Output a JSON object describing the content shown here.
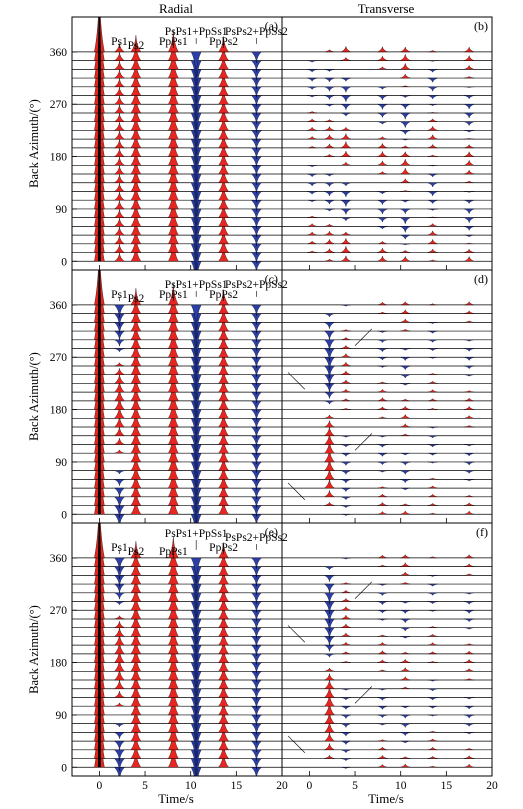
{
  "figure": {
    "column_titles": [
      "Radial",
      "Transverse"
    ],
    "y_axis_label": "Back Azimuth/(°)",
    "x_axis_label": "Time/s"
  },
  "colors": {
    "positive_fill": "#e8261f",
    "negative_fill": "#2c3fa8",
    "direct_fill": "#000000",
    "arrow_orange": "#e07a2a",
    "arrow_green": "#2e9a3e",
    "trace_line": "#000000"
  },
  "chart_data": [
    {
      "type": "receiver-function-gather",
      "panel_label": "(a)",
      "component": "Radial",
      "xlim": [
        -3,
        20
      ],
      "ylim": [
        -15,
        420
      ],
      "x_ticks": [
        0,
        5,
        10,
        15,
        20
      ],
      "y_ticks": [
        0,
        90,
        180,
        270,
        360
      ],
      "back_azimuths": [
        0,
        15,
        30,
        45,
        60,
        75,
        90,
        105,
        120,
        135,
        150,
        165,
        180,
        195,
        210,
        225,
        240,
        255,
        270,
        285,
        300,
        315,
        330,
        345,
        360
      ],
      "phases": [
        {
          "name": "direct P",
          "t": 0,
          "amplitude": 1.0,
          "sign": "positive",
          "varies_with_azimuth": false
        },
        {
          "name": "Ps1",
          "t": 2.2,
          "amplitude": 0.13,
          "sign": "positive",
          "varies_with_azimuth": false
        },
        {
          "name": "Ps2",
          "t": 4.0,
          "amplitude": 0.26,
          "sign": "positive",
          "varies_with_azimuth": false
        },
        {
          "name": "PpPs1",
          "t": 8.1,
          "amplitude": 0.34,
          "sign": "positive",
          "varies_with_azimuth": false
        },
        {
          "name": "PsPs1+PpSs1",
          "t": 10.6,
          "amplitude": 0.38,
          "sign": "negative",
          "varies_with_azimuth": false
        },
        {
          "name": "PpPs2",
          "t": 13.6,
          "amplitude": 0.24,
          "sign": "positive",
          "varies_with_azimuth": false
        },
        {
          "name": "PsPs2+PpSs2",
          "t": 17.2,
          "amplitude": 0.17,
          "sign": "negative",
          "varies_with_azimuth": false
        }
      ],
      "annotations": [
        {
          "text": "Ps1",
          "t": 2.2
        },
        {
          "text": "Ps2",
          "t": 4.0
        },
        {
          "text": "PpPs1",
          "t": 8.1
        },
        {
          "text": "PsPs1+PpSs1",
          "t": 10.6
        },
        {
          "text": "PpPs2",
          "t": 13.6
        },
        {
          "text": "PsPs2+PpSs2",
          "t": 17.2
        }
      ],
      "arrows": []
    },
    {
      "type": "receiver-function-gather",
      "panel_label": "(b)",
      "component": "Transverse",
      "xlim": [
        -3,
        20
      ],
      "ylim": [
        -15,
        420
      ],
      "x_ticks": [
        0,
        5,
        10,
        15,
        20
      ],
      "y_ticks": [
        0,
        90,
        180,
        270,
        360
      ],
      "back_azimuths": [
        0,
        15,
        30,
        45,
        60,
        75,
        90,
        105,
        120,
        135,
        150,
        165,
        180,
        195,
        210,
        225,
        240,
        255,
        270,
        285,
        300,
        315,
        330,
        345,
        360
      ],
      "phases": [
        {
          "name": "T1",
          "t": 0.3,
          "amplitude": 0.05,
          "sign": "positive",
          "varies_with_azimuth": true,
          "pattern": "sin2",
          "phase_deg": 0
        },
        {
          "name": "T2",
          "t": 2.2,
          "amplitude": 0.07,
          "sign": "positive",
          "varies_with_azimuth": true,
          "pattern": "sin2",
          "phase_deg": 30
        },
        {
          "name": "T3",
          "t": 4.0,
          "amplitude": 0.1,
          "sign": "positive",
          "varies_with_azimuth": true,
          "pattern": "sin2",
          "phase_deg": 60
        },
        {
          "name": "T4",
          "t": 8.0,
          "amplitude": 0.08,
          "sign": "positive",
          "varies_with_azimuth": true,
          "pattern": "sin2",
          "phase_deg": 90
        },
        {
          "name": "T5",
          "t": 10.5,
          "amplitude": 0.1,
          "sign": "positive",
          "varies_with_azimuth": true,
          "pattern": "sin2",
          "phase_deg": 130
        },
        {
          "name": "T6",
          "t": 13.5,
          "amplitude": 0.07,
          "sign": "positive",
          "varies_with_azimuth": true,
          "pattern": "sin2",
          "phase_deg": 20
        },
        {
          "name": "T7",
          "t": 17.5,
          "amplitude": 0.08,
          "sign": "positive",
          "varies_with_azimuth": true,
          "pattern": "sin2",
          "phase_deg": 110
        }
      ],
      "annotations": [],
      "arrows": []
    },
    {
      "type": "receiver-function-gather",
      "panel_label": "(c)",
      "component": "Radial",
      "xlim": [
        -3,
        20
      ],
      "ylim": [
        -15,
        420
      ],
      "x_ticks": [
        0,
        5,
        10,
        15,
        20
      ],
      "y_ticks": [
        0,
        90,
        180,
        270,
        360
      ],
      "back_azimuths": [
        0,
        15,
        30,
        45,
        60,
        75,
        90,
        105,
        120,
        135,
        150,
        165,
        180,
        195,
        210,
        225,
        240,
        255,
        270,
        285,
        300,
        315,
        330,
        345,
        360
      ],
      "phases": [
        {
          "name": "direct P",
          "t": 0,
          "amplitude": 1.0,
          "sign": "positive",
          "varies_with_azimuth": false
        },
        {
          "name": "Ps1",
          "t": 2.2,
          "amplitude": 0.2,
          "sign": "positive",
          "varies_with_azimuth": true,
          "pattern": "cos1",
          "phase_deg": 180
        },
        {
          "name": "Ps2",
          "t": 4.0,
          "amplitude": 0.26,
          "sign": "positive",
          "varies_with_azimuth": false
        },
        {
          "name": "PpPs1",
          "t": 8.1,
          "amplitude": 0.34,
          "sign": "positive",
          "varies_with_azimuth": false
        },
        {
          "name": "PsPs1+PpSs1",
          "t": 10.6,
          "amplitude": 0.38,
          "sign": "negative",
          "varies_with_azimuth": false
        },
        {
          "name": "PpPs2",
          "t": 13.6,
          "amplitude": 0.24,
          "sign": "positive",
          "varies_with_azimuth": false
        },
        {
          "name": "PsPs2+PpSs2",
          "t": 17.2,
          "amplitude": 0.17,
          "sign": "negative",
          "varies_with_azimuth": false
        }
      ],
      "annotations": [
        {
          "text": "Ps1",
          "t": 2.2
        },
        {
          "text": "Ps2",
          "t": 4.0
        },
        {
          "text": "PpPs1",
          "t": 8.1
        },
        {
          "text": "PsPs1+PpSs1",
          "t": 10.6
        },
        {
          "text": "PpPs2",
          "t": 13.6
        },
        {
          "text": "PsPs2+PpSs2",
          "t": 17.2
        }
      ],
      "arrows": []
    },
    {
      "type": "receiver-function-gather",
      "panel_label": "(d)",
      "component": "Transverse",
      "xlim": [
        -3,
        20
      ],
      "ylim": [
        -15,
        420
      ],
      "x_ticks": [
        0,
        5,
        10,
        15,
        20
      ],
      "y_ticks": [
        0,
        90,
        180,
        270,
        360
      ],
      "back_azimuths": [
        0,
        15,
        30,
        45,
        60,
        75,
        90,
        105,
        120,
        135,
        150,
        165,
        180,
        195,
        210,
        225,
        240,
        255,
        270,
        285,
        300,
        315,
        330,
        345,
        360
      ],
      "phases": [
        {
          "name": "T-Ps1",
          "t": 2.2,
          "amplitude": 0.2,
          "sign": "positive",
          "varies_with_azimuth": true,
          "pattern": "sin1",
          "phase_deg": 0
        },
        {
          "name": "T-Ps2",
          "t": 4.0,
          "amplitude": 0.06,
          "sign": "positive",
          "varies_with_azimuth": true,
          "pattern": "sin1",
          "phase_deg": 200
        },
        {
          "name": "T3",
          "t": 8.0,
          "amplitude": 0.05,
          "sign": "positive",
          "varies_with_azimuth": true,
          "pattern": "sin2",
          "phase_deg": 60
        },
        {
          "name": "T4",
          "t": 10.5,
          "amplitude": 0.06,
          "sign": "positive",
          "varies_with_azimuth": true,
          "pattern": "sin2",
          "phase_deg": 120
        },
        {
          "name": "T5",
          "t": 13.5,
          "amplitude": 0.04,
          "sign": "positive",
          "varies_with_azimuth": true,
          "pattern": "sin2",
          "phase_deg": 30
        },
        {
          "name": "T6",
          "t": 17.5,
          "amplitude": 0.05,
          "sign": "positive",
          "varies_with_azimuth": true,
          "pattern": "sin2",
          "phase_deg": 90
        }
      ],
      "annotations": [],
      "arrows": [
        {
          "color": "orange",
          "t": -0.5,
          "baz": 215,
          "direction": "down-right"
        },
        {
          "color": "orange",
          "t": -0.5,
          "baz": 25,
          "direction": "down-right"
        },
        {
          "color": "green",
          "t": 5.0,
          "baz": 290,
          "direction": "down-left"
        },
        {
          "color": "green",
          "t": 5.0,
          "baz": 110,
          "direction": "down-left"
        }
      ]
    },
    {
      "type": "receiver-function-gather",
      "panel_label": "(e)",
      "component": "Radial",
      "xlim": [
        -3,
        20
      ],
      "ylim": [
        -15,
        420
      ],
      "x_ticks": [
        0,
        5,
        10,
        15,
        20
      ],
      "y_ticks": [
        0,
        90,
        180,
        270,
        360
      ],
      "back_azimuths": [
        0,
        15,
        30,
        45,
        60,
        75,
        90,
        105,
        120,
        135,
        150,
        165,
        180,
        195,
        210,
        225,
        240,
        255,
        270,
        285,
        300,
        315,
        330,
        345,
        360
      ],
      "phases": [
        {
          "name": "direct P",
          "t": 0,
          "amplitude": 1.0,
          "sign": "positive",
          "varies_with_azimuth": false
        },
        {
          "name": "Ps1",
          "t": 2.2,
          "amplitude": 0.2,
          "sign": "positive",
          "varies_with_azimuth": true,
          "pattern": "cos1",
          "phase_deg": 180
        },
        {
          "name": "Ps2",
          "t": 4.0,
          "amplitude": 0.26,
          "sign": "positive",
          "varies_with_azimuth": false
        },
        {
          "name": "PpPs1",
          "t": 8.1,
          "amplitude": 0.34,
          "sign": "positive",
          "varies_with_azimuth": false
        },
        {
          "name": "PsPs1+PpSs1",
          "t": 10.6,
          "amplitude": 0.38,
          "sign": "negative",
          "varies_with_azimuth": false
        },
        {
          "name": "PpPs2",
          "t": 13.6,
          "amplitude": 0.24,
          "sign": "positive",
          "varies_with_azimuth": false
        },
        {
          "name": "PsPs2+PpSs2",
          "t": 17.2,
          "amplitude": 0.17,
          "sign": "negative",
          "varies_with_azimuth": false
        }
      ],
      "annotations": [
        {
          "text": "Ps1",
          "t": 2.2
        },
        {
          "text": "Ps2",
          "t": 4.0
        },
        {
          "text": "PsPs1+PpSs1",
          "t": 10.6
        },
        {
          "text": "PpPs1",
          "t": 8.1
        },
        {
          "text": "PpPs2",
          "t": 13.6
        },
        {
          "text": "PsPs2+PpSs2",
          "t": 17.2
        }
      ],
      "arrows": []
    },
    {
      "type": "receiver-function-gather",
      "panel_label": "(f)",
      "component": "Transverse",
      "xlim": [
        -3,
        20
      ],
      "ylim": [
        -15,
        420
      ],
      "x_ticks": [
        0,
        5,
        10,
        15,
        20
      ],
      "y_ticks": [
        0,
        90,
        180,
        270,
        360
      ],
      "back_azimuths": [
        0,
        15,
        30,
        45,
        60,
        75,
        90,
        105,
        120,
        135,
        150,
        165,
        180,
        195,
        210,
        225,
        240,
        255,
        270,
        285,
        300,
        315,
        330,
        345,
        360
      ],
      "phases": [
        {
          "name": "T-Ps1",
          "t": 2.2,
          "amplitude": 0.2,
          "sign": "positive",
          "varies_with_azimuth": true,
          "pattern": "sin1",
          "phase_deg": 0
        },
        {
          "name": "T-Ps2",
          "t": 4.0,
          "amplitude": 0.06,
          "sign": "positive",
          "varies_with_azimuth": true,
          "pattern": "sin1",
          "phase_deg": 200
        },
        {
          "name": "T3",
          "t": 8.0,
          "amplitude": 0.05,
          "sign": "positive",
          "varies_with_azimuth": true,
          "pattern": "sin2",
          "phase_deg": 60
        },
        {
          "name": "T4",
          "t": 10.5,
          "amplitude": 0.06,
          "sign": "positive",
          "varies_with_azimuth": true,
          "pattern": "sin2",
          "phase_deg": 120
        },
        {
          "name": "T5",
          "t": 13.5,
          "amplitude": 0.04,
          "sign": "positive",
          "varies_with_azimuth": true,
          "pattern": "sin2",
          "phase_deg": 30
        },
        {
          "name": "T6",
          "t": 17.5,
          "amplitude": 0.05,
          "sign": "positive",
          "varies_with_azimuth": true,
          "pattern": "sin2",
          "phase_deg": 90
        }
      ],
      "annotations": [],
      "arrows": [
        {
          "color": "orange",
          "t": -0.5,
          "baz": 215,
          "direction": "down-right"
        },
        {
          "color": "orange",
          "t": -0.5,
          "baz": 25,
          "direction": "down-right"
        },
        {
          "color": "green",
          "t": 5.0,
          "baz": 290,
          "direction": "down-left"
        },
        {
          "color": "green",
          "t": 5.0,
          "baz": 110,
          "direction": "down-left"
        }
      ]
    }
  ]
}
